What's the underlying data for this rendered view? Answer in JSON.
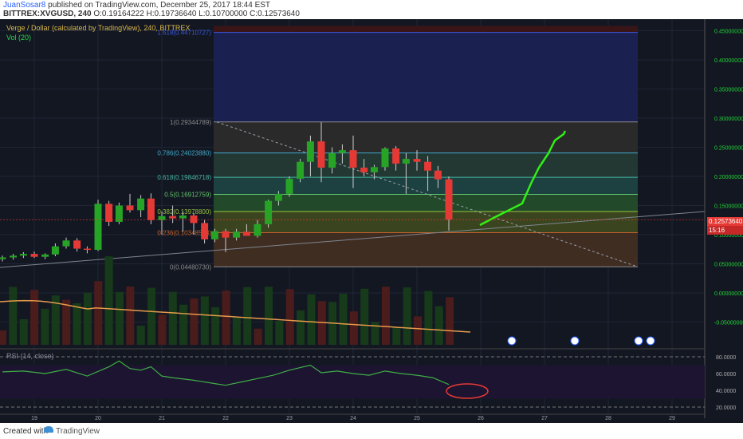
{
  "header": {
    "author": "JuanSosar8",
    "published_text": "published on TradingView.com, December 25, 2017 18:44 EST",
    "symbol": "BITTREX:XVGUSD, 240",
    "ohlc": "O:0.19164222 H:0.19736640 L:0.10700000 C:0.12573640"
  },
  "legend": {
    "title": "Verge / Dollar (calculated by TradingView), 240, BITTREX",
    "volume": "Vol (20)",
    "rsi": "RSI (14, close)"
  },
  "price_pill": "0.12573640",
  "time_pill": "15:16",
  "footer": {
    "created": "Created with",
    "brand": "TradingView"
  },
  "colors": {
    "up": "#27a326",
    "down": "#e53935",
    "arrow": "#31ef16",
    "background": "#131722",
    "fib_text": "#8ab4f8"
  },
  "chart_data": {
    "type": "candlestick",
    "title": "Verge / Dollar (calculated by TradingView), 240, BITTREX",
    "x_ticks": [
      "19",
      "20",
      "21",
      "22",
      "23",
      "24",
      "25",
      "26",
      "27",
      "28",
      "29"
    ],
    "price_axis": [
      "0.45000000",
      "0.40000000",
      "0.35000000",
      "0.30000000",
      "0.25000000",
      "0.20000000",
      "0.15000000",
      "0.10000000",
      "0.05000000",
      "0.00000000",
      "-0.05000000"
    ],
    "rsi_axis": [
      "80.0000",
      "60.0000",
      "40.0000",
      "20.0000"
    ],
    "ylim": [
      -0.08,
      0.46
    ],
    "last_close": 0.1257364,
    "fib_levels": [
      {
        "ratio": 1.618,
        "label": "1.618(0.44710727)",
        "value": 0.44710727
      },
      {
        "ratio": 1,
        "label": "1(0.29344789)",
        "value": 0.29344789
      },
      {
        "ratio": 0.786,
        "label": "0.786(0.24023880)",
        "value": 0.2402388
      },
      {
        "ratio": 0.618,
        "label": "0.618(0.19846718)",
        "value": 0.19846718
      },
      {
        "ratio": 0.5,
        "label": "0.5(0.16912759)",
        "value": 0.16912759
      },
      {
        "ratio": 0.382,
        "label": "0.382(0.13978800)",
        "value": 0.139788
      },
      {
        "ratio": 0.236,
        "label": "0.236(0.10348548)",
        "value": 0.10348548
      },
      {
        "ratio": 0,
        "label": "0(0.04480730)",
        "value": 0.0448073
      }
    ],
    "candles": [
      {
        "t": 18.5,
        "o": 0.058,
        "h": 0.064,
        "l": 0.054,
        "c": 0.061
      },
      {
        "t": 18.67,
        "o": 0.061,
        "h": 0.067,
        "l": 0.057,
        "c": 0.064
      },
      {
        "t": 18.83,
        "o": 0.064,
        "h": 0.07,
        "l": 0.06,
        "c": 0.067
      },
      {
        "t": 19,
        "o": 0.067,
        "h": 0.071,
        "l": 0.06,
        "c": 0.062
      },
      {
        "t": 19.17,
        "o": 0.062,
        "h": 0.068,
        "l": 0.058,
        "c": 0.066
      },
      {
        "t": 19.33,
        "o": 0.066,
        "h": 0.085,
        "l": 0.063,
        "c": 0.08
      },
      {
        "t": 19.5,
        "o": 0.08,
        "h": 0.095,
        "l": 0.076,
        "c": 0.09
      },
      {
        "t": 19.67,
        "o": 0.09,
        "h": 0.094,
        "l": 0.071,
        "c": 0.076
      },
      {
        "t": 19.83,
        "o": 0.076,
        "h": 0.08,
        "l": 0.068,
        "c": 0.074
      },
      {
        "t": 20,
        "o": 0.074,
        "h": 0.16,
        "l": 0.072,
        "c": 0.153
      },
      {
        "t": 20.17,
        "o": 0.153,
        "h": 0.158,
        "l": 0.115,
        "c": 0.122
      },
      {
        "t": 20.33,
        "o": 0.122,
        "h": 0.155,
        "l": 0.118,
        "c": 0.15
      },
      {
        "t": 20.5,
        "o": 0.15,
        "h": 0.17,
        "l": 0.138,
        "c": 0.142
      },
      {
        "t": 20.67,
        "o": 0.142,
        "h": 0.168,
        "l": 0.13,
        "c": 0.162
      },
      {
        "t": 20.83,
        "o": 0.162,
        "h": 0.171,
        "l": 0.118,
        "c": 0.125
      },
      {
        "t": 21,
        "o": 0.125,
        "h": 0.14,
        "l": 0.1,
        "c": 0.132
      },
      {
        "t": 21.17,
        "o": 0.132,
        "h": 0.15,
        "l": 0.12,
        "c": 0.128
      },
      {
        "t": 21.33,
        "o": 0.128,
        "h": 0.14,
        "l": 0.105,
        "c": 0.133
      },
      {
        "t": 21.5,
        "o": 0.133,
        "h": 0.137,
        "l": 0.1,
        "c": 0.12
      },
      {
        "t": 21.67,
        "o": 0.12,
        "h": 0.125,
        "l": 0.085,
        "c": 0.092
      },
      {
        "t": 21.83,
        "o": 0.092,
        "h": 0.11,
        "l": 0.087,
        "c": 0.106
      },
      {
        "t": 22,
        "o": 0.106,
        "h": 0.11,
        "l": 0.07,
        "c": 0.095
      },
      {
        "t": 22.17,
        "o": 0.095,
        "h": 0.11,
        "l": 0.09,
        "c": 0.105
      },
      {
        "t": 22.33,
        "o": 0.105,
        "h": 0.118,
        "l": 0.1,
        "c": 0.098
      },
      {
        "t": 22.5,
        "o": 0.098,
        "h": 0.125,
        "l": 0.095,
        "c": 0.118
      },
      {
        "t": 22.67,
        "o": 0.118,
        "h": 0.16,
        "l": 0.112,
        "c": 0.158
      },
      {
        "t": 22.83,
        "o": 0.158,
        "h": 0.175,
        "l": 0.15,
        "c": 0.17
      },
      {
        "t": 23,
        "o": 0.17,
        "h": 0.2,
        "l": 0.165,
        "c": 0.196
      },
      {
        "t": 23.17,
        "o": 0.196,
        "h": 0.23,
        "l": 0.19,
        "c": 0.225
      },
      {
        "t": 23.33,
        "o": 0.225,
        "h": 0.27,
        "l": 0.2,
        "c": 0.26
      },
      {
        "t": 23.5,
        "o": 0.26,
        "h": 0.293,
        "l": 0.19,
        "c": 0.215
      },
      {
        "t": 23.67,
        "o": 0.215,
        "h": 0.25,
        "l": 0.205,
        "c": 0.24
      },
      {
        "t": 23.83,
        "o": 0.24,
        "h": 0.255,
        "l": 0.222,
        "c": 0.245
      },
      {
        "t": 24,
        "o": 0.245,
        "h": 0.27,
        "l": 0.18,
        "c": 0.215
      },
      {
        "t": 24.17,
        "o": 0.215,
        "h": 0.23,
        "l": 0.2,
        "c": 0.207
      },
      {
        "t": 24.33,
        "o": 0.207,
        "h": 0.22,
        "l": 0.195,
        "c": 0.216
      },
      {
        "t": 24.5,
        "o": 0.216,
        "h": 0.25,
        "l": 0.21,
        "c": 0.248
      },
      {
        "t": 24.67,
        "o": 0.248,
        "h": 0.252,
        "l": 0.21,
        "c": 0.222
      },
      {
        "t": 24.83,
        "o": 0.222,
        "h": 0.24,
        "l": 0.17,
        "c": 0.23
      },
      {
        "t": 25,
        "o": 0.23,
        "h": 0.245,
        "l": 0.21,
        "c": 0.225
      },
      {
        "t": 25.17,
        "o": 0.225,
        "h": 0.235,
        "l": 0.175,
        "c": 0.21
      },
      {
        "t": 25.33,
        "o": 0.21,
        "h": 0.218,
        "l": 0.18,
        "c": 0.195
      },
      {
        "t": 25.5,
        "o": 0.195,
        "h": 0.2,
        "l": 0.107,
        "c": 0.126
      }
    ],
    "rsi": [
      {
        "t": 18.5,
        "v": 62
      },
      {
        "t": 18.83,
        "v": 63
      },
      {
        "t": 19.17,
        "v": 60
      },
      {
        "t": 19.5,
        "v": 65
      },
      {
        "t": 19.83,
        "v": 57
      },
      {
        "t": 20.17,
        "v": 68
      },
      {
        "t": 20.33,
        "v": 75
      },
      {
        "t": 20.5,
        "v": 66
      },
      {
        "t": 20.67,
        "v": 64
      },
      {
        "t": 20.83,
        "v": 68
      },
      {
        "t": 21,
        "v": 57
      },
      {
        "t": 21.17,
        "v": 55
      },
      {
        "t": 21.5,
        "v": 52
      },
      {
        "t": 21.83,
        "v": 48
      },
      {
        "t": 22,
        "v": 46
      },
      {
        "t": 22.25,
        "v": 50
      },
      {
        "t": 22.5,
        "v": 54
      },
      {
        "t": 22.75,
        "v": 58
      },
      {
        "t": 23,
        "v": 64
      },
      {
        "t": 23.33,
        "v": 70
      },
      {
        "t": 23.5,
        "v": 61
      },
      {
        "t": 23.75,
        "v": 63
      },
      {
        "t": 24,
        "v": 60
      },
      {
        "t": 24.25,
        "v": 58
      },
      {
        "t": 24.5,
        "v": 63
      },
      {
        "t": 24.75,
        "v": 60
      },
      {
        "t": 25,
        "v": 58
      },
      {
        "t": 25.25,
        "v": 55
      },
      {
        "t": 25.5,
        "v": 47
      }
    ]
  }
}
